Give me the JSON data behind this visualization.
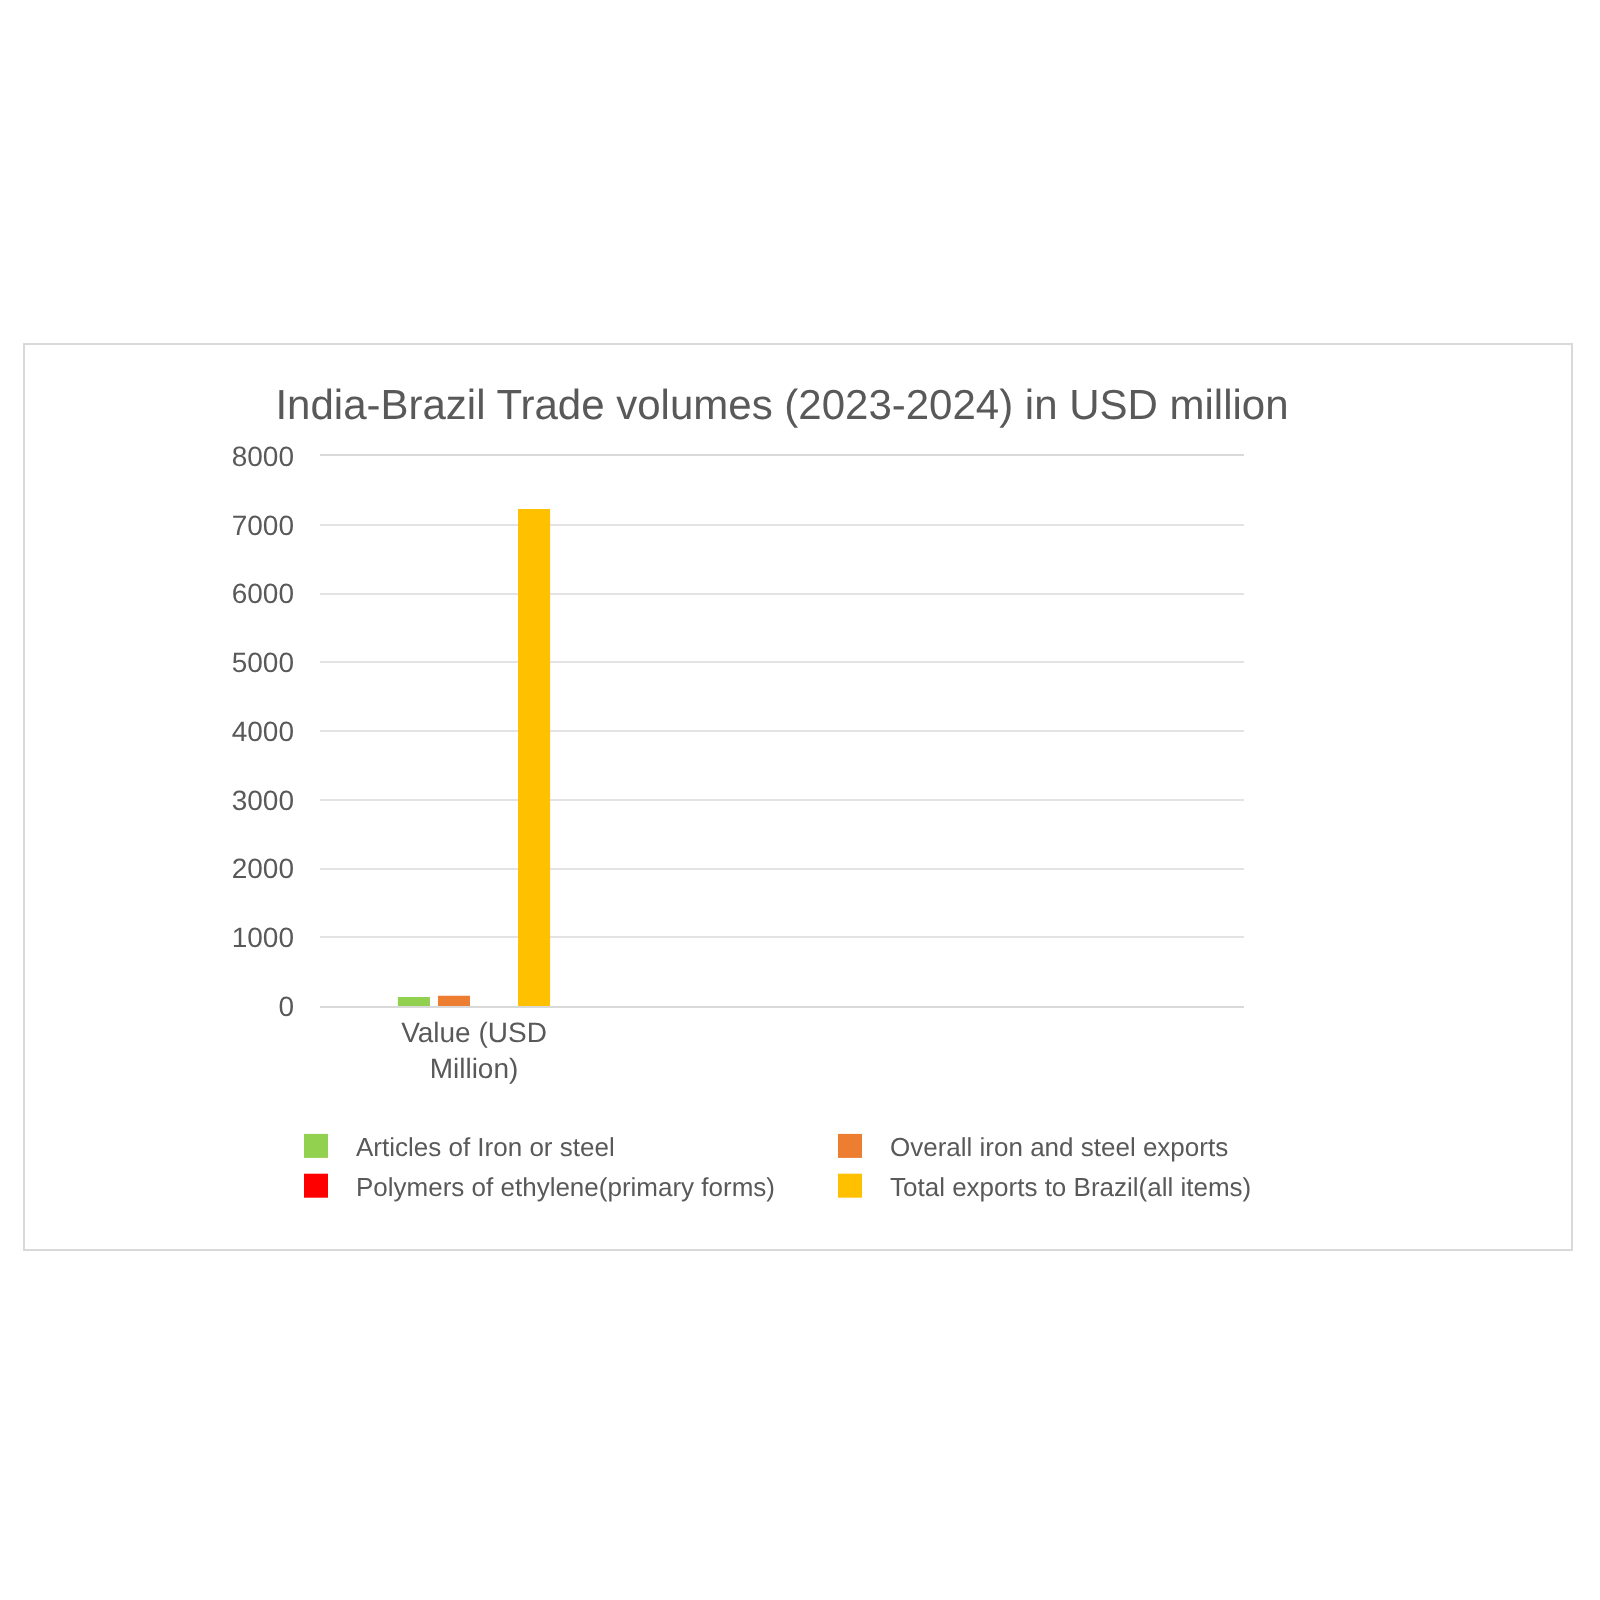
{
  "chart_data": {
    "type": "bar",
    "title": "India-Brazil Trade volumes (2023-2024) in USD million",
    "categories": [
      "Value (USD Million)",
      null,
      null
    ],
    "series": [
      {
        "name": "Articles of Iron or steel",
        "color": "#92d050",
        "values": [
          130,
          null,
          null
        ]
      },
      {
        "name": "Overall iron and steel exports",
        "color": "#ed7d31",
        "values": [
          150,
          null,
          null
        ]
      },
      {
        "name": "Polymers of ethylene(primary forms)",
        "color": "#ff0000",
        "values": [
          null,
          null,
          null
        ]
      },
      {
        "name": "Total exports to Brazil(all items)",
        "color": "#ffc000",
        "values": [
          7230,
          null,
          null
        ]
      }
    ],
    "ylim": [
      0,
      8000
    ],
    "yticks": [
      0,
      1000,
      2000,
      3000,
      4000,
      5000,
      6000,
      7000,
      8000
    ],
    "grid": "y",
    "legend": "bottom"
  }
}
